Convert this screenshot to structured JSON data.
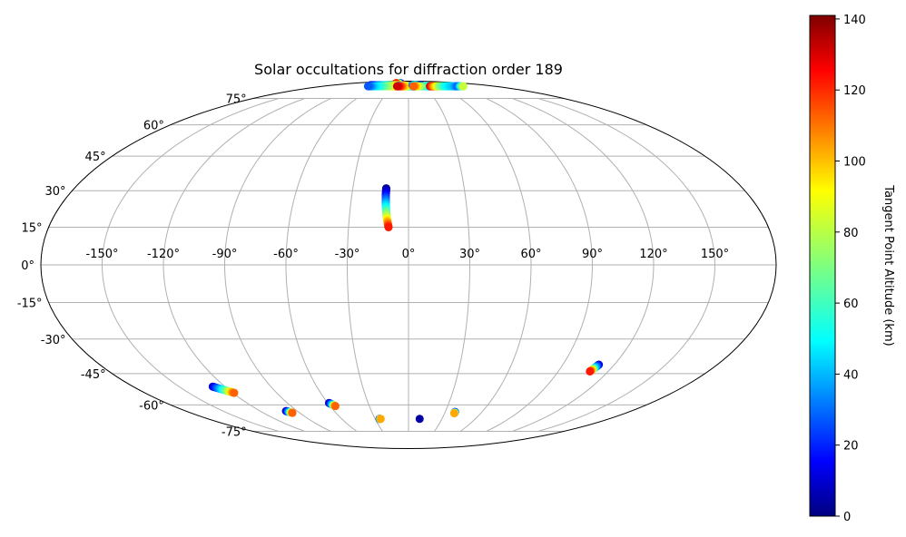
{
  "chart_data": {
    "type": "scatter",
    "projection": "mollweide",
    "title": "Solar occultations for diffraction order 189",
    "lon_ticks": [
      "-150°",
      "-120°",
      "-90°",
      "-60°",
      "-30°",
      "0°",
      "30°",
      "60°",
      "90°",
      "120°",
      "150°"
    ],
    "lon_tick_values": [
      -150,
      -120,
      -90,
      -60,
      -30,
      0,
      30,
      60,
      90,
      120,
      150
    ],
    "lat_ticks": [
      "75°",
      "60°",
      "45°",
      "30°",
      "15°",
      "0°",
      "-15°",
      "-30°",
      "-45°",
      "-60°",
      "-75°"
    ],
    "lat_tick_values": [
      75,
      60,
      45,
      30,
      15,
      0,
      -15,
      -30,
      -45,
      -60,
      -75
    ],
    "grid": true,
    "colorbar": {
      "label": "Tangent Point Altitude (km)",
      "colormap": "jet",
      "range": [
        0,
        141
      ],
      "ticks": [
        0,
        20,
        40,
        60,
        80,
        100,
        120,
        140
      ]
    },
    "series": [
      {
        "lon": [
          -26,
          -30,
          -34,
          -38,
          -42
        ],
        "lat": [
          87,
          87,
          87,
          87,
          87
        ],
        "alt": [
          2,
          30,
          60,
          90,
          120
        ]
      },
      {
        "lon": [
          -10,
          -20,
          -35,
          -50,
          -60,
          -70,
          -80,
          -90
        ],
        "lat": [
          85,
          85,
          85,
          85,
          85,
          85,
          85,
          85
        ],
        "alt": [
          120,
          100,
          80,
          60,
          50,
          40,
          30,
          10
        ]
      },
      {
        "lon": [
          -12,
          -24,
          -40,
          -60,
          -75,
          -85
        ],
        "lat": [
          84,
          84,
          84,
          84,
          84,
          84
        ],
        "alt": [
          130,
          110,
          80,
          60,
          45,
          30
        ]
      },
      {
        "lon": [
          0,
          -6,
          -12,
          -18,
          -22
        ],
        "lat": [
          84.5,
          84.5,
          84.5,
          84.5,
          84.5
        ],
        "alt": [
          120,
          100,
          80,
          60,
          40
        ]
      },
      {
        "lon": [
          14,
          9,
          4,
          -2,
          -8,
          -16,
          -24
        ],
        "lat": [
          84,
          84,
          84,
          84,
          84,
          84,
          84
        ],
        "alt": [
          10,
          30,
          50,
          70,
          90,
          110,
          130
        ]
      },
      {
        "lon": [
          9,
          14,
          19,
          24,
          30
        ],
        "lat": [
          85,
          85,
          85,
          85,
          85
        ],
        "alt": [
          30,
          50,
          60,
          40,
          10
        ]
      },
      {
        "lon": [
          60,
          50,
          40,
          30,
          20,
          10
        ],
        "lat": [
          84,
          84,
          84,
          84,
          84,
          84
        ],
        "alt": [
          10,
          30,
          50,
          60,
          80,
          110
        ]
      },
      {
        "lon": [
          45,
          55,
          65,
          75,
          85,
          95,
          105,
          115
        ],
        "lat": [
          84,
          84,
          84,
          84,
          84,
          84,
          84,
          84
        ],
        "alt": [
          130,
          100,
          75,
          60,
          50,
          45,
          30,
          80
        ]
      },
      {
        "lon": [
          -12,
          -12,
          -11.8,
          -11.5,
          -11,
          -10.5,
          -10
        ],
        "lat": [
          31,
          28,
          25,
          22,
          19,
          17,
          15
        ],
        "alt": [
          2,
          20,
          40,
          60,
          80,
          100,
          120
        ]
      },
      {
        "lon": [
          111,
          110,
          109
        ],
        "lat": [
          -41,
          -42.5,
          -44
        ],
        "alt": [
          10,
          50,
          120
        ]
      },
      {
        "lon": [
          -128,
          -125,
          -122,
          -119
        ],
        "lat": [
          -51,
          -52,
          -53,
          -54
        ],
        "alt": [
          10,
          40,
          70,
          110
        ]
      },
      {
        "lon": [
          -99,
          -97.5,
          -96
        ],
        "lat": [
          -63.2,
          -63.7,
          -64.2
        ],
        "alt": [
          5,
          40,
          110
        ]
      },
      {
        "lon": [
          -59,
          -57.5,
          -56
        ],
        "lat": [
          -59,
          -59.8,
          -60.6
        ],
        "alt": [
          5,
          40,
          110
        ]
      },
      {
        "lon": [
          -26,
          -25
        ],
        "lat": [
          -67.5,
          -67.5
        ],
        "alt": [
          5,
          100
        ]
      },
      {
        "lon": [
          10
        ],
        "lat": [
          -67.5
        ],
        "alt": [
          5
        ]
      },
      {
        "lon": [
          38,
          38
        ],
        "lat": [
          -63.7,
          -64.4
        ],
        "alt": [
          5,
          100
        ]
      }
    ]
  }
}
